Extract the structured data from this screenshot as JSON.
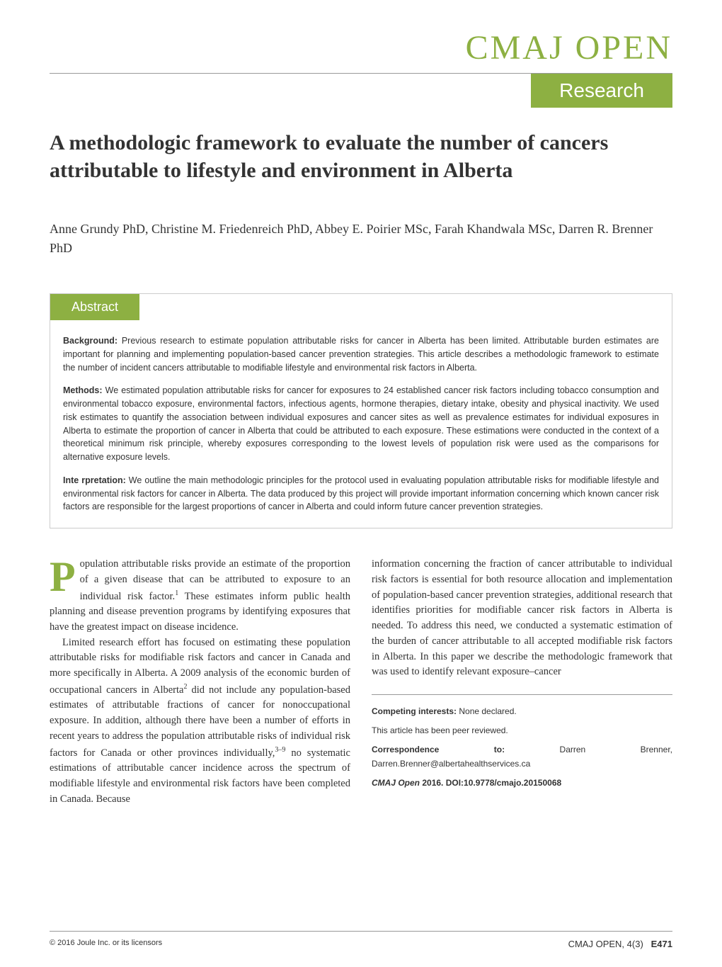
{
  "journal": {
    "name": "CMAJ OPEN",
    "section": "Research"
  },
  "article": {
    "title": "A methodologic framework to evaluate the number of cancers attributable to lifestyle and environment in Alberta",
    "authors": "Anne Grundy PhD, Christine M. Friedenreich PhD, Abbey E. Poirier MSc, Farah Khandwala MSc, Darren R. Brenner PhD"
  },
  "abstract": {
    "heading": "Abstract",
    "background_label": "Background:",
    "background_text": " Previous research to estimate population attributable risks for cancer in Alberta has been limited. Attributable burden estimates are important for planning and implementing population-based cancer prevention strategies. This article describes a methodologic framework to estimate the number of incident cancers attributable to modifiable lifestyle and environmental risk factors in Alberta.",
    "methods_label": "Methods:",
    "methods_text": " We estimated population attributable risks for cancer for exposures to 24 established cancer risk factors including tobacco consumption and environmental tobacco exposure, environmental factors, infectious agents, hormone therapies, dietary intake, obesity and physical inactivity. We used risk estimates to quantify the association between individual exposures and cancer sites as well as prevalence estimates for individual exposures in Alberta to estimate the proportion of cancer in Alberta that could be attributed to each exposure. These estimations were conducted in the context of a theoretical minimum risk principle, whereby exposures corresponding to the lowest levels of population risk were used as the comparisons for alternative exposure levels.",
    "interpretation_label": "Inte rpretation:",
    "interpretation_text": " We outline the main methodologic principles for the protocol used in evaluating population attributable risks for modifiable lifestyle and environmental risk factors for cancer in Alberta. The data produced by this project will provide important information concerning which known cancer risk factors are responsible for the largest proportions of cancer in Alberta and could inform future cancer prevention strategies."
  },
  "body": {
    "col1_p1_dropcap": "P",
    "col1_p1": "opulation attributable risks provide an estimate of the proportion of a given disease that can be attributed to exposure to an individual risk factor.",
    "col1_p1_sup": "1",
    "col1_p1_cont": " These estimates inform public health planning and disease prevention programs by identifying exposures that have the greatest impact on disease incidence.",
    "col1_p2": "Limited research effort has focused on estimating these population attributable risks for modifiable risk factors and cancer in Canada and more specifically in Alberta. A 2009 analysis of the economic burden of occupational cancers in Alberta",
    "col1_p2_sup": "2",
    "col1_p2_cont": " did not include any population-based estimates of attributable fractions of cancer for nonoccupational exposure. In addition, although there have been a number of efforts in recent years to address the population attributable risks of individual risk factors for Canada or other provinces individually,",
    "col1_p2_sup2": "3–9",
    "col1_p2_cont2": " no systematic estimations of attributable cancer incidence across the spectrum of modifiable lifestyle and environmental risk factors have been completed in Canada. Because",
    "col2_p1": "information concerning the fraction of cancer attributable to individual risk factors is essential for both resource allocation and implementation of population-based cancer prevention strategies, additional research that identifies priorities for modifiable cancer risk factors in Alberta is needed. To address this need, we conducted a systematic estimation of the burden of cancer attributable to all accepted modifiable risk factors in Alberta. In this paper we describe the methodologic framework that was used to identify relevant exposure–cancer"
  },
  "info": {
    "competing_label": "Competing interests:",
    "competing_text": " None declared.",
    "peer_review": "This article has been peer reviewed.",
    "correspondence_label": "Correspondence to:",
    "correspondence_text": " Darren Brenner, Darren.Brenner@albertahealthservices.ca",
    "citation_journal": "CMAJ Open",
    "citation_text": " 2016. DOI:10.9778/cmajo.20150068"
  },
  "footer": {
    "copyright": "© 2016 Joule Inc. or its licensors",
    "journal_ref": "CMAJ OPEN, 4(3)",
    "page": "E471"
  },
  "colors": {
    "accent": "#8db042",
    "text": "#333333",
    "border": "#cccccc",
    "line": "#999999"
  }
}
